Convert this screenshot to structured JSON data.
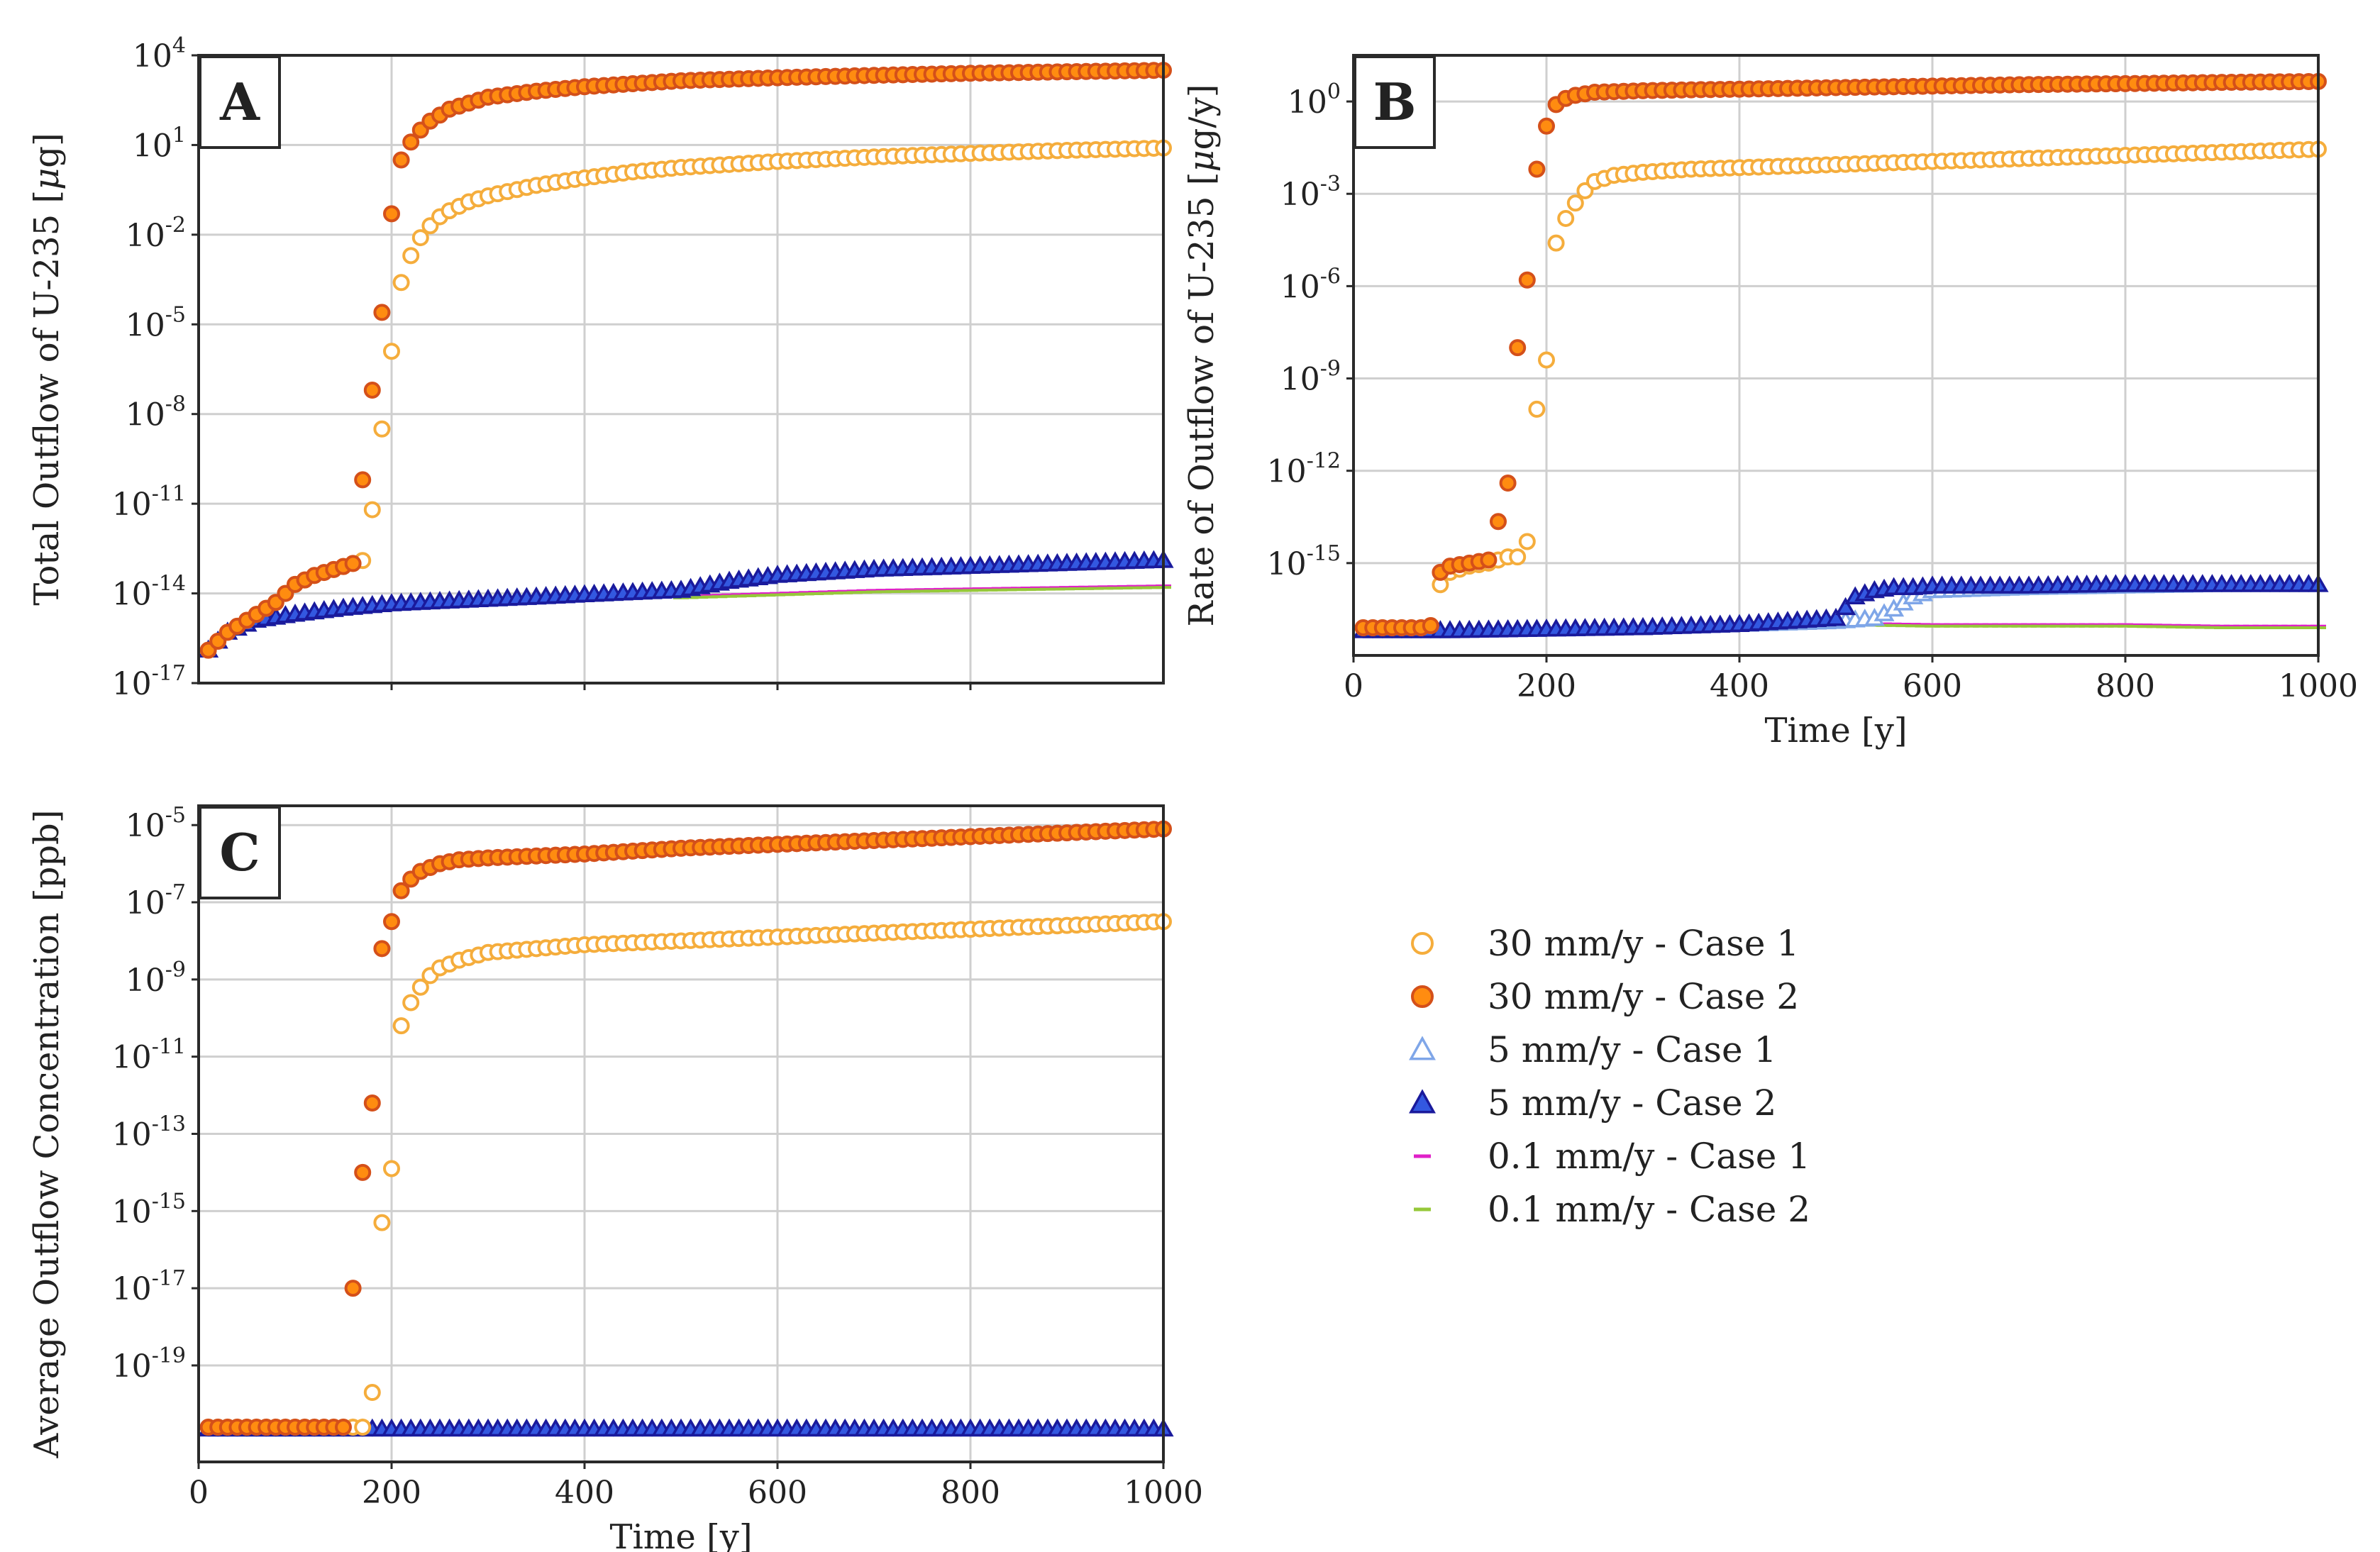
{
  "figure": {
    "colors": {
      "case1_30": "#f5ad3c",
      "case2_30_fill": "#ff8c10",
      "case2_30_edge": "#d4501a",
      "case1_5": "#7fa6e8",
      "case2_5_fill": "#3358e0",
      "case2_5_edge": "#1a1a9c",
      "case1_01": "#e020c8",
      "case2_01": "#96c83a"
    }
  },
  "legend": [
    {
      "label": "30 mm/y - Case 1",
      "series_key": "s30c1",
      "marker": "circle-open"
    },
    {
      "label": "30 mm/y - Case 2",
      "series_key": "s30c2",
      "marker": "circle-filled"
    },
    {
      "label": "5 mm/y - Case 1",
      "series_key": "s5c1",
      "marker": "triangle-open"
    },
    {
      "label": "5 mm/y - Case 2",
      "series_key": "s5c2",
      "marker": "triangle-filled"
    },
    {
      "label": "0.1 mm/y - Case 1",
      "series_key": "s01c1",
      "marker": "dash"
    },
    {
      "label": "0.1 mm/y - Case 2",
      "series_key": "s01c2",
      "marker": "dash"
    }
  ],
  "chart_data": [
    {
      "panel": "A",
      "type": "scatter",
      "yscale": "log",
      "xlabel": "",
      "ylabel_parts": [
        "Total Outflow of U-235 [",
        "μ",
        "g]"
      ],
      "xlim": [
        0,
        1000
      ],
      "ylim_exp": [
        -17,
        4
      ],
      "xticks": [
        200,
        400,
        600,
        800
      ],
      "xtick_labels": [],
      "yticks": [
        {
          "exp": 4,
          "label": "10",
          "sup": "4"
        },
        {
          "exp": 1,
          "label": "10",
          "sup": "1"
        },
        {
          "exp": -2,
          "label": "10",
          "sup": "-2"
        },
        {
          "exp": -5,
          "label": "10",
          "sup": "-5"
        },
        {
          "exp": -8,
          "label": "10",
          "sup": "-8"
        },
        {
          "exp": -11,
          "label": "10",
          "sup": "-11"
        },
        {
          "exp": -14,
          "label": "10",
          "sup": "-14"
        },
        {
          "exp": -17,
          "label": "10",
          "sup": "-17"
        }
      ],
      "series": [
        {
          "key": "s30c1",
          "name": "30 mm/y - Case 1",
          "x": [
            10,
            30,
            60,
            80,
            100,
            120,
            140,
            160,
            170,
            180,
            190,
            200,
            210,
            220,
            230,
            240,
            250,
            260,
            280,
            300,
            350,
            400,
            450,
            500,
            600,
            700,
            800,
            900,
            1000
          ],
          "logy": [
            -15.9,
            -15.3,
            -14.7,
            -14.3,
            -13.7,
            -13.4,
            -13.2,
            -13.0,
            -12.9,
            -11.2,
            -8.5,
            -5.9,
            -3.6,
            -2.7,
            -2.1,
            -1.7,
            -1.4,
            -1.2,
            -0.9,
            -0.7,
            -0.35,
            -0.1,
            0.1,
            0.25,
            0.45,
            0.6,
            0.72,
            0.82,
            0.9
          ]
        },
        {
          "key": "s30c2",
          "name": "30 mm/y - Case 2",
          "x": [
            10,
            30,
            60,
            80,
            100,
            120,
            140,
            160,
            170,
            180,
            190,
            200,
            210,
            220,
            230,
            240,
            250,
            260,
            280,
            300,
            350,
            400,
            450,
            500,
            600,
            700,
            800,
            900,
            1000
          ],
          "logy": [
            -15.9,
            -15.3,
            -14.7,
            -14.3,
            -13.7,
            -13.4,
            -13.2,
            -13.0,
            -10.2,
            -7.2,
            -4.6,
            -1.3,
            0.5,
            1.1,
            1.5,
            1.8,
            2.0,
            2.2,
            2.4,
            2.6,
            2.8,
            2.95,
            3.05,
            3.15,
            3.25,
            3.33,
            3.4,
            3.45,
            3.5
          ]
        },
        {
          "key": "s5c1",
          "name": "5 mm/y - Case 1",
          "x": [
            10,
            30,
            60,
            100,
            150,
            200,
            300,
            400,
            500,
            550,
            600,
            700,
            800,
            900,
            1000
          ],
          "logy": [
            -15.9,
            -15.3,
            -14.9,
            -14.7,
            -14.5,
            -14.35,
            -14.2,
            -14.05,
            -13.9,
            -13.6,
            -13.4,
            -13.2,
            -13.1,
            -13.0,
            -12.9
          ]
        },
        {
          "key": "s5c2",
          "name": "5 mm/y - Case 2",
          "x": [
            10,
            30,
            60,
            100,
            150,
            200,
            300,
            400,
            500,
            550,
            600,
            700,
            800,
            900,
            1000
          ],
          "logy": [
            -15.9,
            -15.3,
            -14.9,
            -14.7,
            -14.5,
            -14.35,
            -14.2,
            -14.05,
            -13.9,
            -13.6,
            -13.4,
            -13.2,
            -13.1,
            -13.0,
            -12.9
          ]
        },
        {
          "key": "s01c1",
          "name": "0.1 mm/y - Case 1",
          "x": [
            500,
            600,
            700,
            800,
            900,
            1000
          ],
          "logy": [
            -14.1,
            -14.0,
            -13.9,
            -13.85,
            -13.8,
            -13.75
          ]
        },
        {
          "key": "s01c2",
          "name": "0.1 mm/y - Case 2",
          "x": [
            500,
            600,
            700,
            800,
            900,
            1000
          ],
          "logy": [
            -14.15,
            -14.05,
            -13.95,
            -13.9,
            -13.85,
            -13.8
          ]
        }
      ]
    },
    {
      "panel": "B",
      "type": "scatter",
      "yscale": "log",
      "xlabel": "Time [y]",
      "ylabel_parts": [
        "Rate of Outflow of U-235 [",
        "μ",
        "g/y]"
      ],
      "xlim": [
        0,
        1000
      ],
      "ylim_exp": [
        -18,
        1.5
      ],
      "xticks": [
        0,
        200,
        400,
        600,
        800,
        1000
      ],
      "xtick_labels": [
        "0",
        "200",
        "400",
        "600",
        "800",
        "1000"
      ],
      "yticks": [
        {
          "exp": 0,
          "label": "10",
          "sup": "0"
        },
        {
          "exp": -3,
          "label": "10",
          "sup": "-3"
        },
        {
          "exp": -6,
          "label": "10",
          "sup": "-6"
        },
        {
          "exp": -9,
          "label": "10",
          "sup": "-9"
        },
        {
          "exp": -12,
          "label": "10",
          "sup": "-12"
        },
        {
          "exp": -15,
          "label": "10",
          "sup": "-15"
        }
      ],
      "series": [
        {
          "key": "s30c1",
          "name": "30 mm/y - Case 1",
          "x": [
            10,
            40,
            70,
            85,
            90,
            100,
            120,
            140,
            160,
            170,
            180,
            190,
            200,
            210,
            220,
            230,
            240,
            250,
            270,
            300,
            350,
            400,
            500,
            600,
            700,
            800,
            900,
            1000
          ],
          "logy": [
            -17.1,
            -17.1,
            -17.1,
            -17.0,
            -15.7,
            -15.3,
            -15.1,
            -15.0,
            -14.8,
            -14.8,
            -14.3,
            -10.0,
            -8.4,
            -4.6,
            -3.8,
            -3.3,
            -2.9,
            -2.6,
            -2.4,
            -2.3,
            -2.2,
            -2.15,
            -2.05,
            -1.95,
            -1.85,
            -1.75,
            -1.65,
            -1.55
          ]
        },
        {
          "key": "s30c2",
          "name": "30 mm/y - Case 2",
          "x": [
            10,
            40,
            70,
            85,
            90,
            100,
            120,
            140,
            160,
            170,
            180,
            190,
            200,
            210,
            220,
            230,
            240,
            250,
            270,
            300,
            350,
            400,
            500,
            600,
            700,
            800,
            900,
            1000
          ],
          "logy": [
            -17.1,
            -17.1,
            -17.1,
            -17.0,
            -15.3,
            -15.1,
            -15.0,
            -14.9,
            -12.4,
            -8.0,
            -5.8,
            -2.2,
            -0.8,
            -0.1,
            0.1,
            0.2,
            0.25,
            0.3,
            0.32,
            0.35,
            0.38,
            0.4,
            0.45,
            0.5,
            0.55,
            0.58,
            0.62,
            0.65
          ]
        },
        {
          "key": "s5c1",
          "name": "5 mm/y - Case 1",
          "x": [
            10,
            100,
            200,
            300,
            400,
            500,
            520,
            540,
            560,
            580,
            600,
            700,
            800,
            900,
            1000
          ],
          "logy": [
            -17.2,
            -17.2,
            -17.15,
            -17.1,
            -17.0,
            -16.9,
            -16.85,
            -16.8,
            -16.5,
            -16.1,
            -15.9,
            -15.8,
            -15.75,
            -15.7,
            -15.7
          ]
        },
        {
          "key": "s5c2",
          "name": "5 mm/y - Case 2",
          "x": [
            10,
            100,
            200,
            300,
            400,
            500,
            520,
            540,
            560,
            580,
            600,
            700,
            800,
            900,
            1000
          ],
          "logy": [
            -17.2,
            -17.2,
            -17.15,
            -17.1,
            -17.0,
            -16.8,
            -16.1,
            -15.9,
            -15.8,
            -15.8,
            -15.75,
            -15.75,
            -15.7,
            -15.7,
            -15.7
          ]
        },
        {
          "key": "s01c1",
          "name": "0.1 mm/y - Case 1",
          "x": [
            500,
            600,
            700,
            800,
            900,
            1000
          ],
          "logy": [
            -16.95,
            -17.0,
            -17.0,
            -17.0,
            -17.05,
            -17.05
          ]
        },
        {
          "key": "s01c2",
          "name": "0.1 mm/y - Case 2",
          "x": [
            500,
            600,
            700,
            800,
            900,
            1000
          ],
          "logy": [
            -17.0,
            -17.05,
            -17.05,
            -17.05,
            -17.1,
            -17.1
          ]
        }
      ]
    },
    {
      "panel": "C",
      "type": "scatter",
      "yscale": "log",
      "xlabel": "Time [y]",
      "ylabel_parts": [
        "Average Outflow Concentration [ppb]",
        "",
        ""
      ],
      "xlim": [
        0,
        1000
      ],
      "ylim_exp": [
        -21.5,
        -4.5
      ],
      "xticks": [
        0,
        200,
        400,
        600,
        800,
        1000
      ],
      "xtick_labels": [
        "0",
        "200",
        "400",
        "600",
        "800",
        "1000"
      ],
      "yticks": [
        {
          "exp": -5,
          "label": "10",
          "sup": "-5"
        },
        {
          "exp": -7,
          "label": "10",
          "sup": "-7"
        },
        {
          "exp": -9,
          "label": "10",
          "sup": "-9"
        },
        {
          "exp": -11,
          "label": "10",
          "sup": "-11"
        },
        {
          "exp": -13,
          "label": "10",
          "sup": "-13"
        },
        {
          "exp": -15,
          "label": "10",
          "sup": "-15"
        },
        {
          "exp": -17,
          "label": "10",
          "sup": "-17"
        },
        {
          "exp": -19,
          "label": "10",
          "sup": "-19"
        }
      ],
      "series": [
        {
          "key": "s30c1",
          "name": "30 mm/y - Case 1",
          "x": [
            10,
            50,
            100,
            150,
            170,
            180,
            190,
            200,
            210,
            220,
            230,
            240,
            250,
            270,
            300,
            350,
            400,
            500,
            600,
            700,
            800,
            900,
            1000
          ],
          "logy": [
            -20.6,
            -20.6,
            -20.6,
            -20.6,
            -20.6,
            -19.7,
            -15.3,
            -13.9,
            -10.2,
            -9.6,
            -9.2,
            -8.9,
            -8.7,
            -8.5,
            -8.3,
            -8.2,
            -8.1,
            -8.0,
            -7.9,
            -7.8,
            -7.7,
            -7.6,
            -7.5
          ]
        },
        {
          "key": "s30c2",
          "name": "30 mm/y - Case 2",
          "x": [
            10,
            50,
            100,
            150,
            160,
            170,
            180,
            190,
            200,
            210,
            220,
            230,
            240,
            250,
            270,
            300,
            350,
            400,
            500,
            600,
            700,
            800,
            900,
            1000
          ],
          "logy": [
            -20.6,
            -20.6,
            -20.6,
            -20.6,
            -17.0,
            -14.0,
            -12.2,
            -8.2,
            -7.5,
            -6.7,
            -6.4,
            -6.2,
            -6.1,
            -6.0,
            -5.9,
            -5.85,
            -5.8,
            -5.75,
            -5.6,
            -5.5,
            -5.4,
            -5.3,
            -5.2,
            -5.1
          ]
        },
        {
          "key": "s5c1",
          "name": "5 mm/y - Case 1",
          "x": [
            10,
            100,
            200,
            300,
            400,
            500,
            600,
            700,
            800,
            900,
            1000
          ],
          "logy": [
            -20.65,
            -20.65,
            -20.65,
            -20.65,
            -20.65,
            -20.65,
            -20.65,
            -20.65,
            -20.65,
            -20.65,
            -20.65
          ]
        },
        {
          "key": "s5c2",
          "name": "5 mm/y - Case 2",
          "x": [
            10,
            100,
            200,
            300,
            400,
            500,
            600,
            700,
            800,
            900,
            1000
          ],
          "logy": [
            -20.65,
            -20.65,
            -20.65,
            -20.65,
            -20.65,
            -20.65,
            -20.65,
            -20.65,
            -20.65,
            -20.65,
            -20.65
          ]
        },
        {
          "key": "s01c1",
          "name": "0.1 mm/y - Case 1",
          "x": [],
          "logy": []
        },
        {
          "key": "s01c2",
          "name": "0.1 mm/y - Case 2",
          "x": [],
          "logy": []
        }
      ]
    }
  ]
}
